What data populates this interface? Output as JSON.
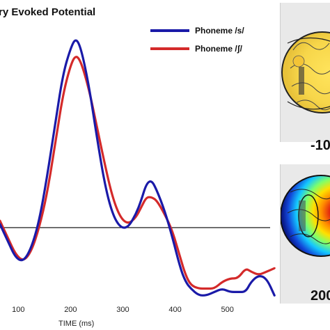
{
  "chart_data": {
    "type": "line",
    "title": "ry Evoked Potential",
    "xlabel": "TIME (ms)",
    "ylabel": "",
    "xlim": [
      65,
      595
    ],
    "ylim": [
      -2.2,
      6.0
    ],
    "x_ticks": [
      100,
      200,
      300,
      400,
      500
    ],
    "baseline": 0,
    "legend_position": "top-right",
    "series": [
      {
        "name": "Phoneme /s/",
        "color": "#1a1aa8",
        "x": [
          65,
          80,
          95,
          110,
          125,
          140,
          155,
          170,
          185,
          200,
          210,
          220,
          235,
          250,
          265,
          280,
          295,
          310,
          325,
          335,
          345,
          355,
          365,
          380,
          395,
          410,
          420,
          430,
          445,
          460,
          475,
          490,
          505,
          520,
          535,
          545,
          560,
          575,
          590
        ],
        "y": [
          0.1,
          -0.4,
          -0.9,
          -1.0,
          -0.6,
          0.2,
          1.5,
          3.0,
          4.5,
          5.3,
          5.6,
          5.3,
          4.2,
          2.7,
          1.3,
          0.4,
          0.0,
          0.0,
          0.4,
          0.8,
          1.3,
          1.4,
          1.1,
          0.5,
          -0.3,
          -1.2,
          -1.6,
          -1.8,
          -2.0,
          -2.0,
          -1.9,
          -1.8,
          -1.9,
          -1.9,
          -1.9,
          -1.6,
          -1.4,
          -1.5,
          -2.0
        ]
      },
      {
        "name": "Phoneme /ʃ/",
        "color": "#d42a2a",
        "x": [
          65,
          80,
          95,
          110,
          125,
          140,
          155,
          170,
          185,
          200,
          210,
          220,
          235,
          250,
          265,
          280,
          295,
          310,
          325,
          335,
          345,
          355,
          365,
          380,
          395,
          410,
          420,
          430,
          445,
          460,
          475,
          490,
          505,
          520,
          535,
          545,
          560,
          575,
          590
        ],
        "y": [
          0.2,
          -0.3,
          -0.8,
          -1.0,
          -0.7,
          0.0,
          1.0,
          2.4,
          3.9,
          4.8,
          5.1,
          4.9,
          4.1,
          3.0,
          1.9,
          0.9,
          0.3,
          0.1,
          0.3,
          0.6,
          0.9,
          0.9,
          0.8,
          0.4,
          -0.1,
          -0.9,
          -1.4,
          -1.7,
          -1.8,
          -1.8,
          -1.8,
          -1.6,
          -1.5,
          -1.5,
          -1.2,
          -1.3,
          -1.4,
          -1.3,
          -1.2
        ]
      }
    ]
  },
  "maps": [
    {
      "label": "-10",
      "palette": "yellow"
    },
    {
      "label": "200",
      "palette": "jet"
    }
  ]
}
